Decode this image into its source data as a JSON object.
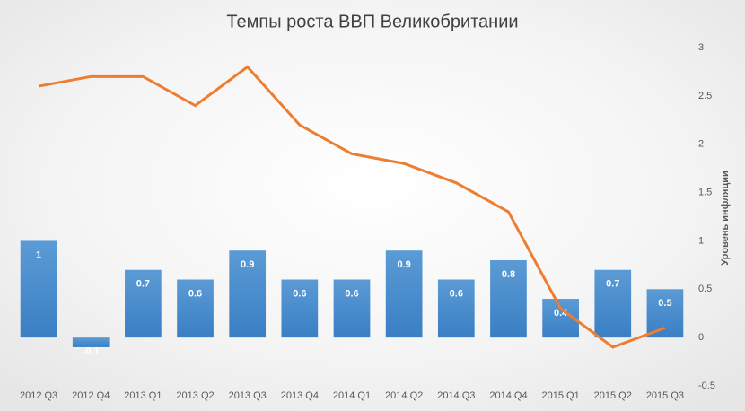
{
  "chart_data": {
    "type": "bar_line",
    "title": "Темпы роста ВВП Великобритании",
    "y_label": "Уровень инфляции",
    "categories": [
      "2012 Q3",
      "2012 Q4",
      "2013 Q1",
      "2013 Q2",
      "2013 Q3",
      "2013 Q4",
      "2014 Q1",
      "2014 Q2",
      "2014 Q3",
      "2014 Q4",
      "2015 Q1",
      "2015 Q2",
      "2015 Q3"
    ],
    "series": [
      {
        "type": "bar",
        "color": "#4a8fd4",
        "values": [
          1,
          -0.1,
          0.7,
          0.6,
          0.9,
          0.6,
          0.6,
          0.9,
          0.6,
          0.8,
          0.4,
          0.7,
          0.5
        ]
      },
      {
        "type": "line",
        "color": "#ed7d31",
        "values": [
          2.6,
          2.7,
          2.7,
          2.4,
          2.8,
          2.2,
          1.9,
          1.8,
          1.6,
          1.3,
          0.3,
          -0.1,
          0.1
        ]
      }
    ],
    "ylim": [
      -0.5,
      3
    ],
    "yticks": [
      -0.5,
      0,
      0.5,
      1,
      1.5,
      2,
      2.5,
      3
    ]
  }
}
